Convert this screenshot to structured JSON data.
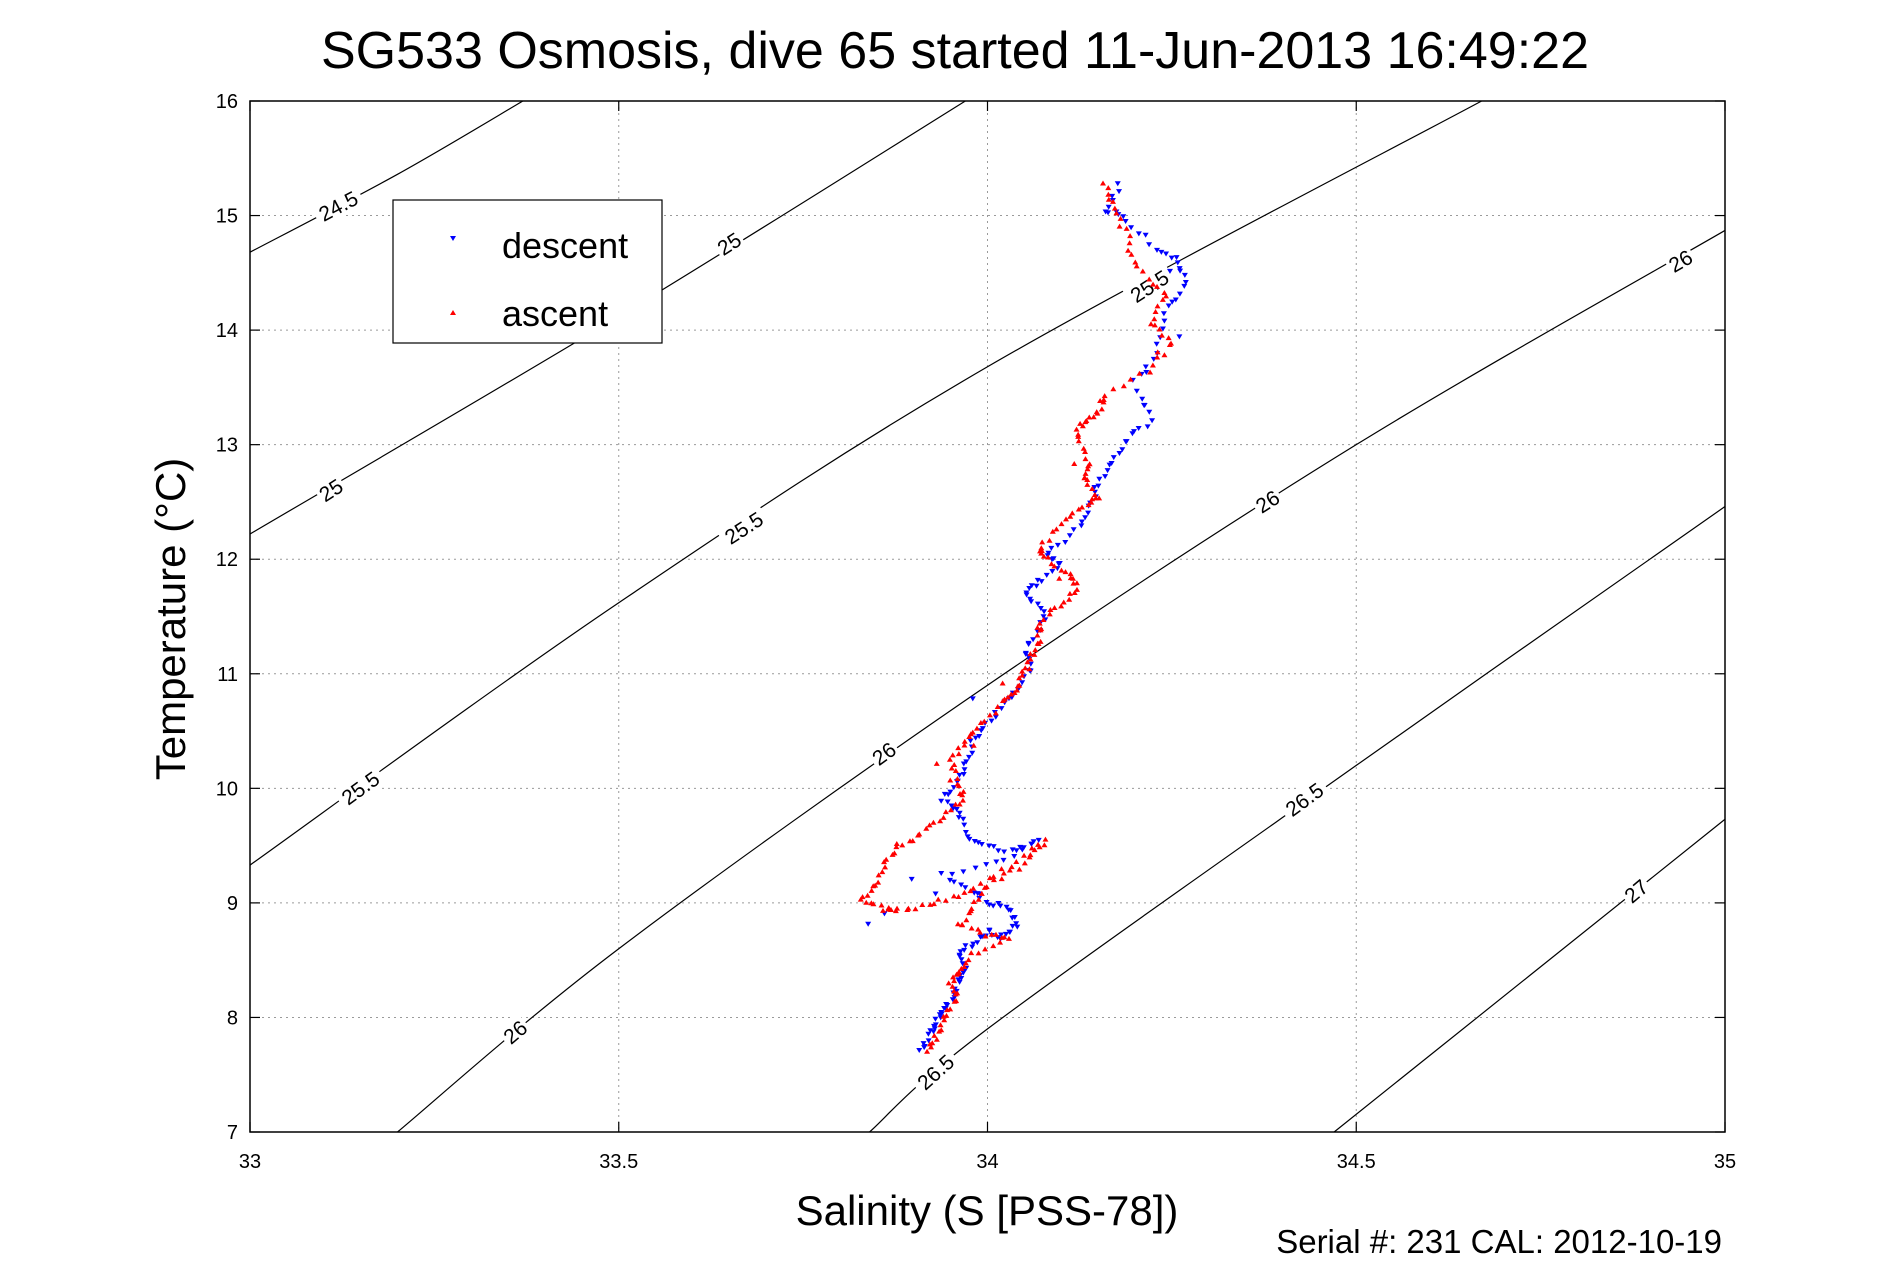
{
  "chart_data": {
    "type": "scatter",
    "title": "SG533 Osmosis, dive 65 started 11-Jun-2013 16:49:22",
    "xlabel": "Salinity (S [PSS-78])",
    "ylabel": "Temperature (°C)",
    "xlim": [
      33,
      35
    ],
    "ylim": [
      7,
      16
    ],
    "x_ticks": [
      33,
      33.5,
      34,
      34.5,
      35
    ],
    "x_tick_labels": [
      "33",
      "33.5",
      "34",
      "34.5",
      "35"
    ],
    "y_ticks": [
      7,
      8,
      9,
      10,
      11,
      12,
      13,
      14,
      15,
      16
    ],
    "y_tick_labels": [
      "7",
      "8",
      "9",
      "10",
      "11",
      "12",
      "13",
      "14",
      "15",
      "16"
    ],
    "grid": true,
    "legend_position": "top-left",
    "footer": "Serial #: 231  CAL: 2012-10-19",
    "colors": {
      "descent": "#0000ff",
      "ascent": "#ff0000",
      "contour": "#000000"
    },
    "density_contours": [
      {
        "level": 24.5,
        "points": [
          [
            33.0,
            14.68
          ],
          [
            33.2,
            15.36
          ],
          [
            33.37,
            16.0
          ]
        ]
      },
      {
        "level": 25.0,
        "points": [
          [
            33.0,
            12.22
          ],
          [
            33.5,
            14.12
          ],
          [
            33.97,
            16.0
          ]
        ]
      },
      {
        "level": 25.5,
        "points": [
          [
            33.0,
            9.33
          ],
          [
            33.5,
            11.62
          ],
          [
            34.0,
            13.68
          ],
          [
            34.67,
            16.0
          ]
        ]
      },
      {
        "level": 26.0,
        "points": [
          [
            33.2,
            7.0
          ],
          [
            33.5,
            8.6
          ],
          [
            34.0,
            10.9
          ],
          [
            34.5,
            13.0
          ],
          [
            35.0,
            14.87
          ]
        ]
      },
      {
        "level": 26.5,
        "points": [
          [
            33.84,
            7.0
          ],
          [
            34.0,
            7.9
          ],
          [
            34.5,
            10.2
          ],
          [
            35.0,
            12.46
          ]
        ]
      },
      {
        "level": 27.0,
        "points": [
          [
            34.47,
            7.0
          ],
          [
            35.0,
            9.73
          ]
        ]
      }
    ],
    "contour_labels": [
      {
        "text": "24.5",
        "x": 33.12,
        "y": 15.08,
        "angle": -28
      },
      {
        "text": "25",
        "x": 33.65,
        "y": 14.75,
        "angle": -33
      },
      {
        "text": "25",
        "x": 33.11,
        "y": 12.6,
        "angle": -33
      },
      {
        "text": "25.5",
        "x": 34.22,
        "y": 14.38,
        "angle": -33
      },
      {
        "text": "25.5",
        "x": 33.67,
        "y": 12.27,
        "angle": -33
      },
      {
        "text": "25.5",
        "x": 33.15,
        "y": 10.0,
        "angle": -36
      },
      {
        "text": "26",
        "x": 34.94,
        "y": 14.6,
        "angle": -30
      },
      {
        "text": "26",
        "x": 34.38,
        "y": 12.5,
        "angle": -33
      },
      {
        "text": "26",
        "x": 33.86,
        "y": 10.3,
        "angle": -36
      },
      {
        "text": "26",
        "x": 33.36,
        "y": 7.87,
        "angle": -40
      },
      {
        "text": "26.5",
        "x": 34.43,
        "y": 9.9,
        "angle": -36
      },
      {
        "text": "26.5",
        "x": 33.93,
        "y": 7.52,
        "angle": -42
      },
      {
        "text": "27",
        "x": 34.88,
        "y": 9.1,
        "angle": -40
      }
    ],
    "series": [
      {
        "name": "descent",
        "marker": "triangle-down",
        "path": [
          [
            34.18,
            15.27
          ],
          [
            34.16,
            15.05
          ],
          [
            34.19,
            14.96
          ],
          [
            34.23,
            14.72
          ],
          [
            34.26,
            14.6
          ],
          [
            34.27,
            14.37
          ],
          [
            34.24,
            14.15
          ],
          [
            34.23,
            13.8
          ],
          [
            34.2,
            13.55
          ],
          [
            34.22,
            13.2
          ],
          [
            34.19,
            13.05
          ],
          [
            34.17,
            12.85
          ],
          [
            34.15,
            12.65
          ],
          [
            34.14,
            12.45
          ],
          [
            34.12,
            12.25
          ],
          [
            34.08,
            12.05
          ],
          [
            34.1,
            11.95
          ],
          [
            34.07,
            11.8
          ],
          [
            34.05,
            11.7
          ],
          [
            34.08,
            11.55
          ],
          [
            34.07,
            11.4
          ],
          [
            34.05,
            11.2
          ],
          [
            34.06,
            11.05
          ],
          [
            34.04,
            10.85
          ],
          [
            34.02,
            10.75
          ],
          [
            34.0,
            10.55
          ],
          [
            33.98,
            10.4
          ],
          [
            33.97,
            10.2
          ],
          [
            33.96,
            10.05
          ],
          [
            33.94,
            9.9
          ],
          [
            33.96,
            9.8
          ],
          [
            33.97,
            9.6
          ],
          [
            34.0,
            9.5
          ],
          [
            34.04,
            9.45
          ],
          [
            34.07,
            9.55
          ],
          [
            34.01,
            9.35
          ],
          [
            33.94,
            9.25
          ],
          [
            33.98,
            9.1
          ],
          [
            34.0,
            9.0
          ],
          [
            34.03,
            8.95
          ],
          [
            34.04,
            8.8
          ],
          [
            34.02,
            8.7
          ],
          [
            34.0,
            8.75
          ],
          [
            33.98,
            8.65
          ],
          [
            33.96,
            8.55
          ],
          [
            33.97,
            8.4
          ],
          [
            33.96,
            8.3
          ],
          [
            33.95,
            8.15
          ],
          [
            33.94,
            8.05
          ],
          [
            33.93,
            7.95
          ],
          [
            33.92,
            7.85
          ],
          [
            33.91,
            7.7
          ]
        ],
        "extra": [
          [
            33.84,
            8.82
          ],
          [
            33.86,
            8.9
          ],
          [
            33.9,
            9.2
          ],
          [
            33.93,
            9.1
          ],
          [
            33.98,
            10.8
          ],
          [
            34.25,
            14.5
          ],
          [
            34.26,
            13.95
          ],
          [
            34.21,
            13.35
          ]
        ]
      },
      {
        "name": "ascent",
        "marker": "triangle-up",
        "path": [
          [
            34.16,
            15.3
          ],
          [
            34.17,
            15.05
          ],
          [
            34.19,
            14.82
          ],
          [
            34.2,
            14.55
          ],
          [
            34.24,
            14.32
          ],
          [
            34.22,
            14.05
          ],
          [
            34.25,
            13.9
          ],
          [
            34.22,
            13.65
          ],
          [
            34.16,
            13.42
          ],
          [
            34.15,
            13.3
          ],
          [
            34.13,
            13.2
          ],
          [
            34.12,
            13.05
          ],
          [
            34.14,
            12.85
          ],
          [
            34.13,
            12.7
          ],
          [
            34.15,
            12.55
          ],
          [
            34.13,
            12.45
          ],
          [
            34.1,
            12.3
          ],
          [
            34.07,
            12.1
          ],
          [
            34.08,
            12.0
          ],
          [
            34.11,
            11.85
          ],
          [
            34.12,
            11.75
          ],
          [
            34.1,
            11.6
          ],
          [
            34.07,
            11.45
          ],
          [
            34.07,
            11.3
          ],
          [
            34.06,
            11.15
          ],
          [
            34.05,
            11.0
          ],
          [
            34.04,
            10.85
          ],
          [
            34.02,
            10.75
          ],
          [
            33.99,
            10.55
          ],
          [
            33.97,
            10.4
          ],
          [
            33.95,
            10.25
          ],
          [
            33.96,
            10.05
          ],
          [
            33.97,
            9.9
          ],
          [
            33.94,
            9.75
          ],
          [
            33.91,
            9.6
          ],
          [
            33.88,
            9.5
          ],
          [
            33.86,
            9.35
          ],
          [
            33.85,
            9.15
          ],
          [
            33.83,
            9.02
          ],
          [
            33.86,
            8.95
          ],
          [
            33.88,
            8.93
          ],
          [
            33.92,
            8.98
          ],
          [
            33.96,
            9.05
          ],
          [
            34.0,
            9.2
          ],
          [
            34.05,
            9.4
          ],
          [
            34.08,
            9.55
          ],
          [
            34.04,
            9.3
          ],
          [
            34.0,
            9.15
          ],
          [
            33.98,
            8.95
          ],
          [
            33.96,
            8.8
          ],
          [
            34.0,
            8.72
          ],
          [
            34.03,
            8.68
          ],
          [
            33.98,
            8.55
          ],
          [
            33.96,
            8.4
          ],
          [
            33.95,
            8.3
          ],
          [
            33.96,
            8.15
          ],
          [
            33.94,
            8.0
          ],
          [
            33.93,
            7.85
          ],
          [
            33.92,
            7.7
          ]
        ],
        "extra": [
          [
            33.98,
            10.35
          ],
          [
            33.93,
            10.2
          ],
          [
            33.95,
            10.05
          ],
          [
            34.02,
            10.9
          ],
          [
            34.24,
            14.3
          ],
          [
            34.23,
            13.8
          ],
          [
            34.12,
            12.85
          ],
          [
            34.1,
            11.85
          ]
        ]
      }
    ]
  }
}
